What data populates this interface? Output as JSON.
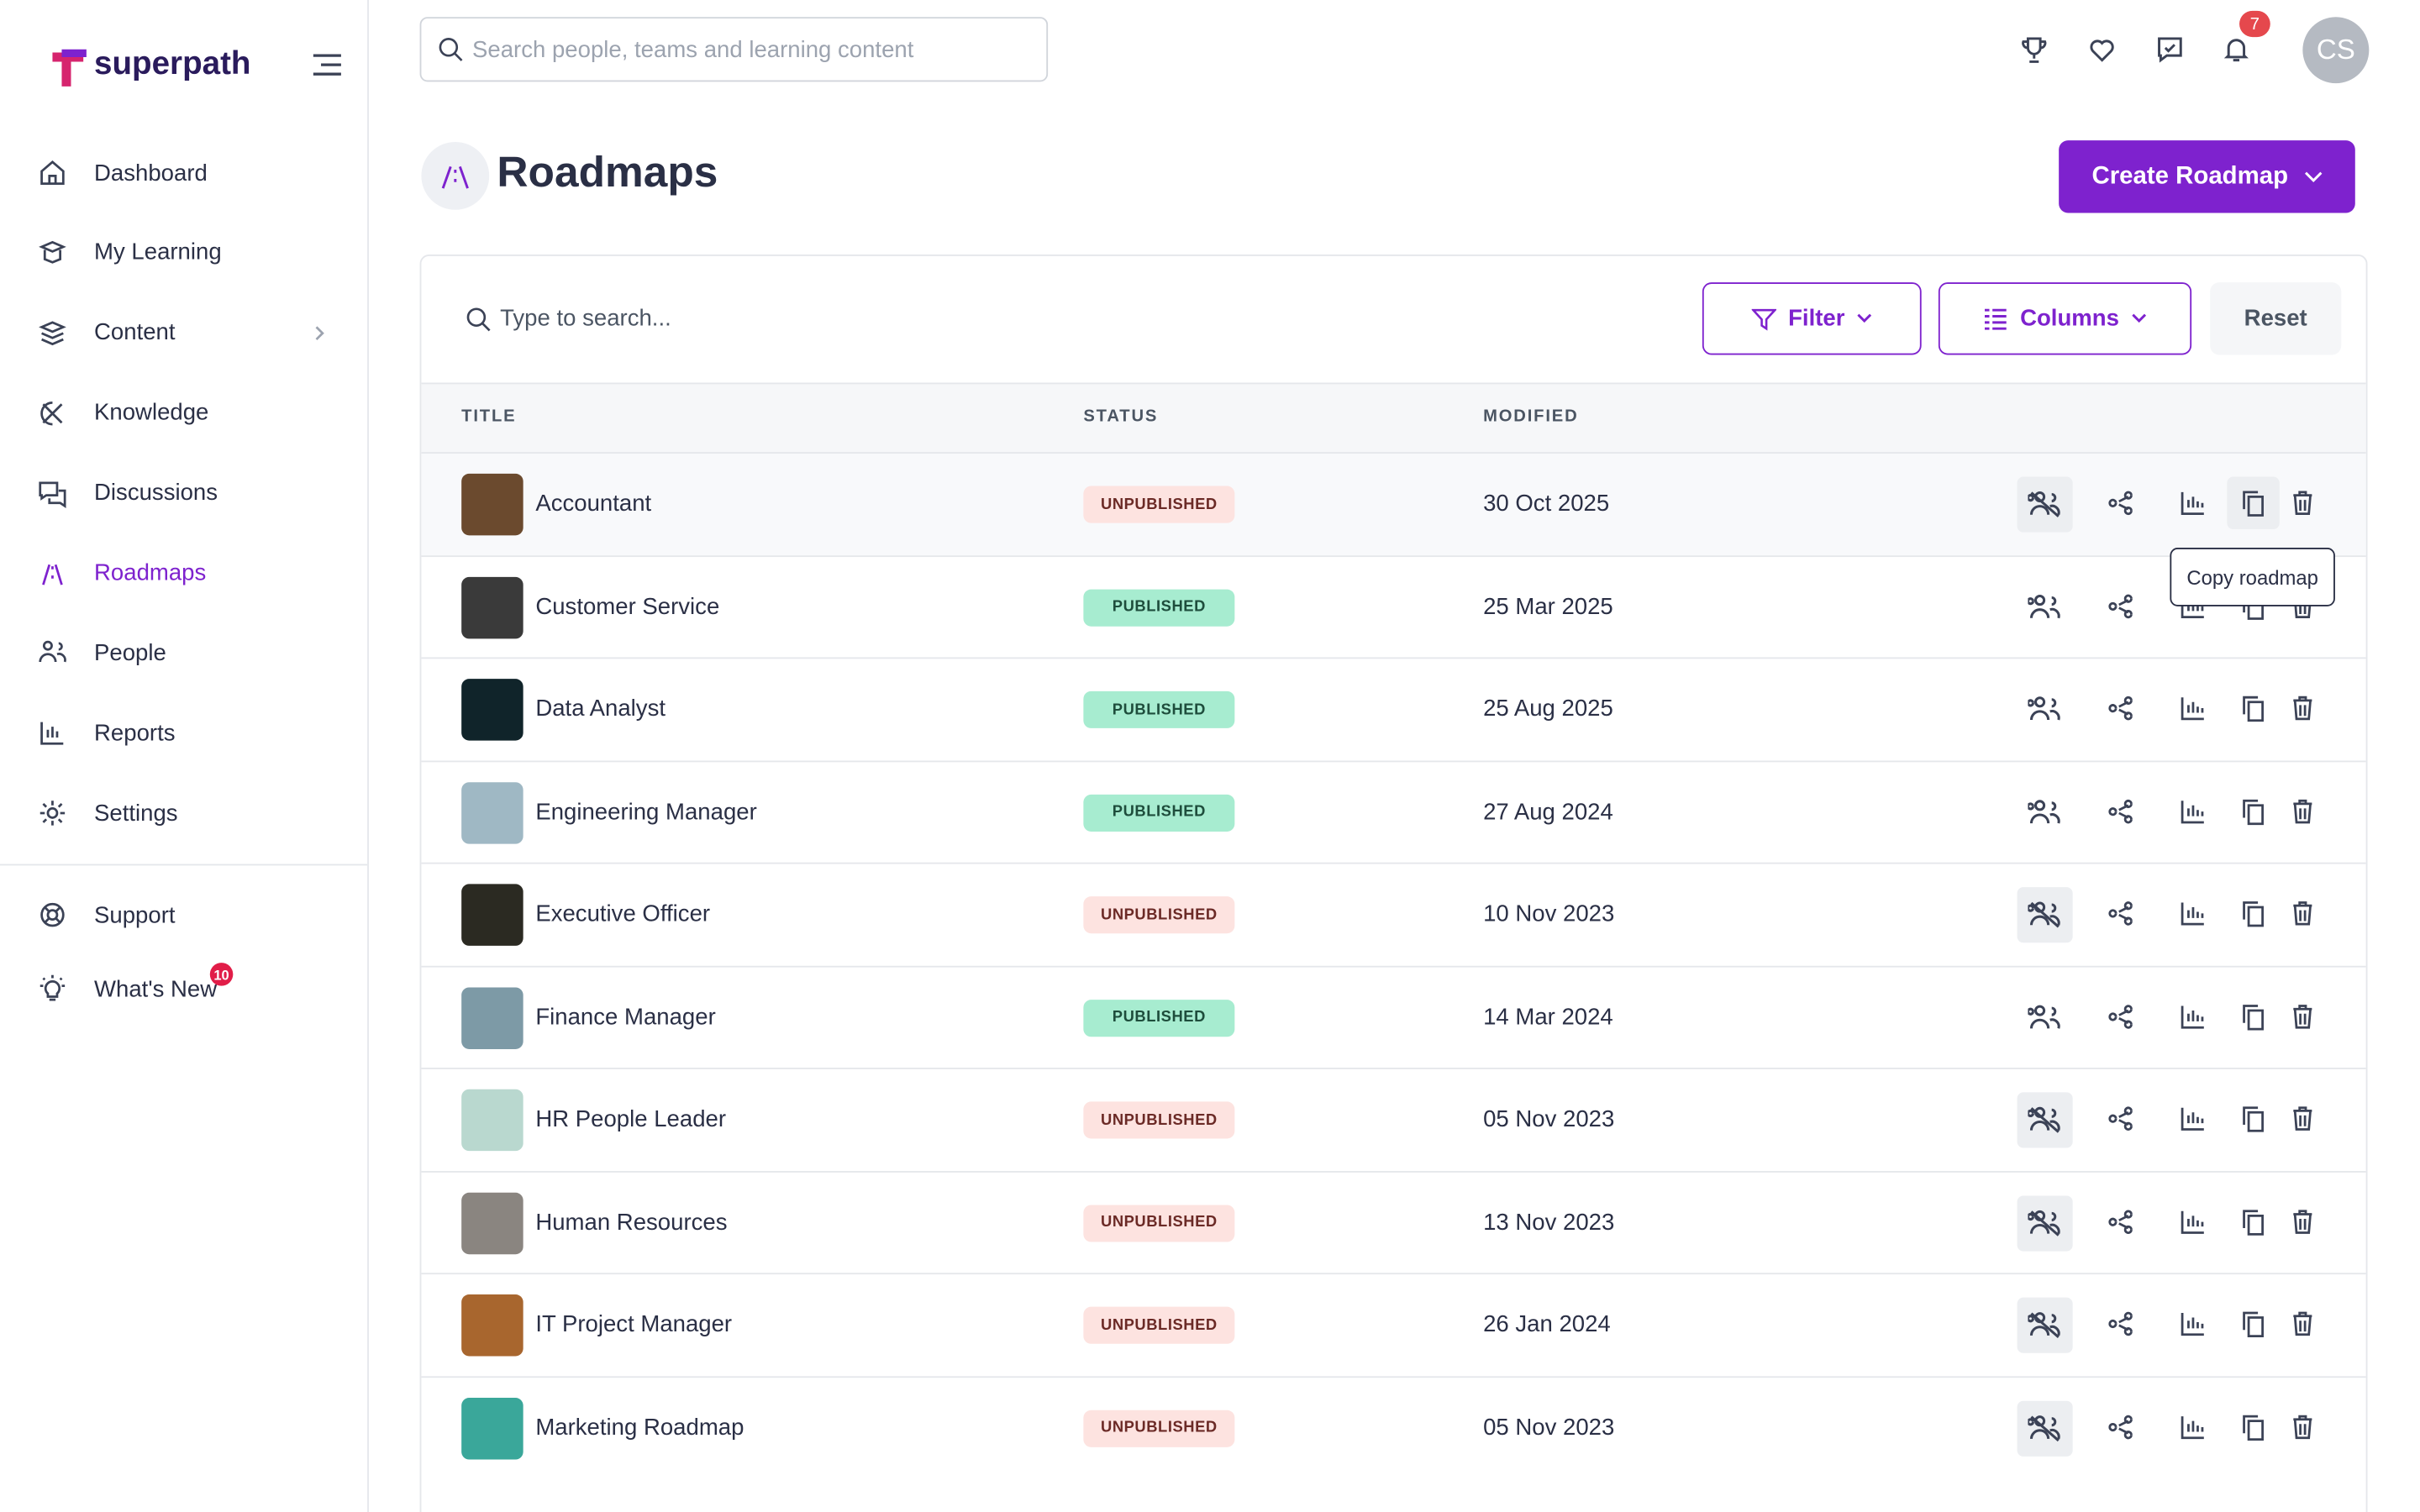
{
  "brand": "superpath",
  "search_placeholder": "Search people, teams and learning content",
  "notifications": 7,
  "avatar": "CS",
  "nav": [
    {
      "label": "Dashboard"
    },
    {
      "label": "My Learning"
    },
    {
      "label": "Content"
    },
    {
      "label": "Knowledge"
    },
    {
      "label": "Discussions"
    },
    {
      "label": "Roadmaps"
    },
    {
      "label": "People"
    },
    {
      "label": "Reports"
    },
    {
      "label": "Settings"
    }
  ],
  "active_nav": 5,
  "nav_secondary": [
    {
      "label": "Support"
    },
    {
      "label": "What's New",
      "badge": 10
    }
  ],
  "page": {
    "title": "Roadmaps",
    "create_button": "Create Roadmap"
  },
  "table": {
    "search_placeholder": "Type to search...",
    "filter": "Filter",
    "columns_button": "Columns",
    "reset": "Reset",
    "headers": [
      "TITLE",
      "STATUS",
      "MODIFIED"
    ],
    "rows": [
      {
        "title": "Accountant",
        "status": "UNPUBLISHED",
        "published": false,
        "modified": "30 Oct 2025",
        "thumb": "#6b4a2e"
      },
      {
        "title": "Customer Service",
        "status": "PUBLISHED",
        "published": true,
        "modified": "25 Mar 2025",
        "thumb": "#3a3a3a"
      },
      {
        "title": "Data Analyst",
        "status": "PUBLISHED",
        "published": true,
        "modified": "25 Aug 2025",
        "thumb": "#10242a"
      },
      {
        "title": "Engineering Manager",
        "status": "PUBLISHED",
        "published": true,
        "modified": "27 Aug 2024",
        "thumb": "#9fb8c4"
      },
      {
        "title": "Executive Officer",
        "status": "UNPUBLISHED",
        "published": false,
        "modified": "10 Nov 2023",
        "thumb": "#2b2a22"
      },
      {
        "title": "Finance Manager",
        "status": "PUBLISHED",
        "published": true,
        "modified": "14 Mar 2024",
        "thumb": "#7d9aa6"
      },
      {
        "title": "HR People Leader",
        "status": "UNPUBLISHED",
        "published": false,
        "modified": "05 Nov 2023",
        "thumb": "#b9d8cf"
      },
      {
        "title": "Human Resources",
        "status": "UNPUBLISHED",
        "published": false,
        "modified": "13 Nov 2023",
        "thumb": "#8a8580"
      },
      {
        "title": "IT Project Manager",
        "status": "UNPUBLISHED",
        "published": false,
        "modified": "26 Jan 2024",
        "thumb": "#a8662e"
      },
      {
        "title": "Marketing Roadmap",
        "status": "UNPUBLISHED",
        "published": false,
        "modified": "05 Nov 2023",
        "thumb": "#3aa79a"
      }
    ],
    "tooltip": "Copy roadmap"
  }
}
